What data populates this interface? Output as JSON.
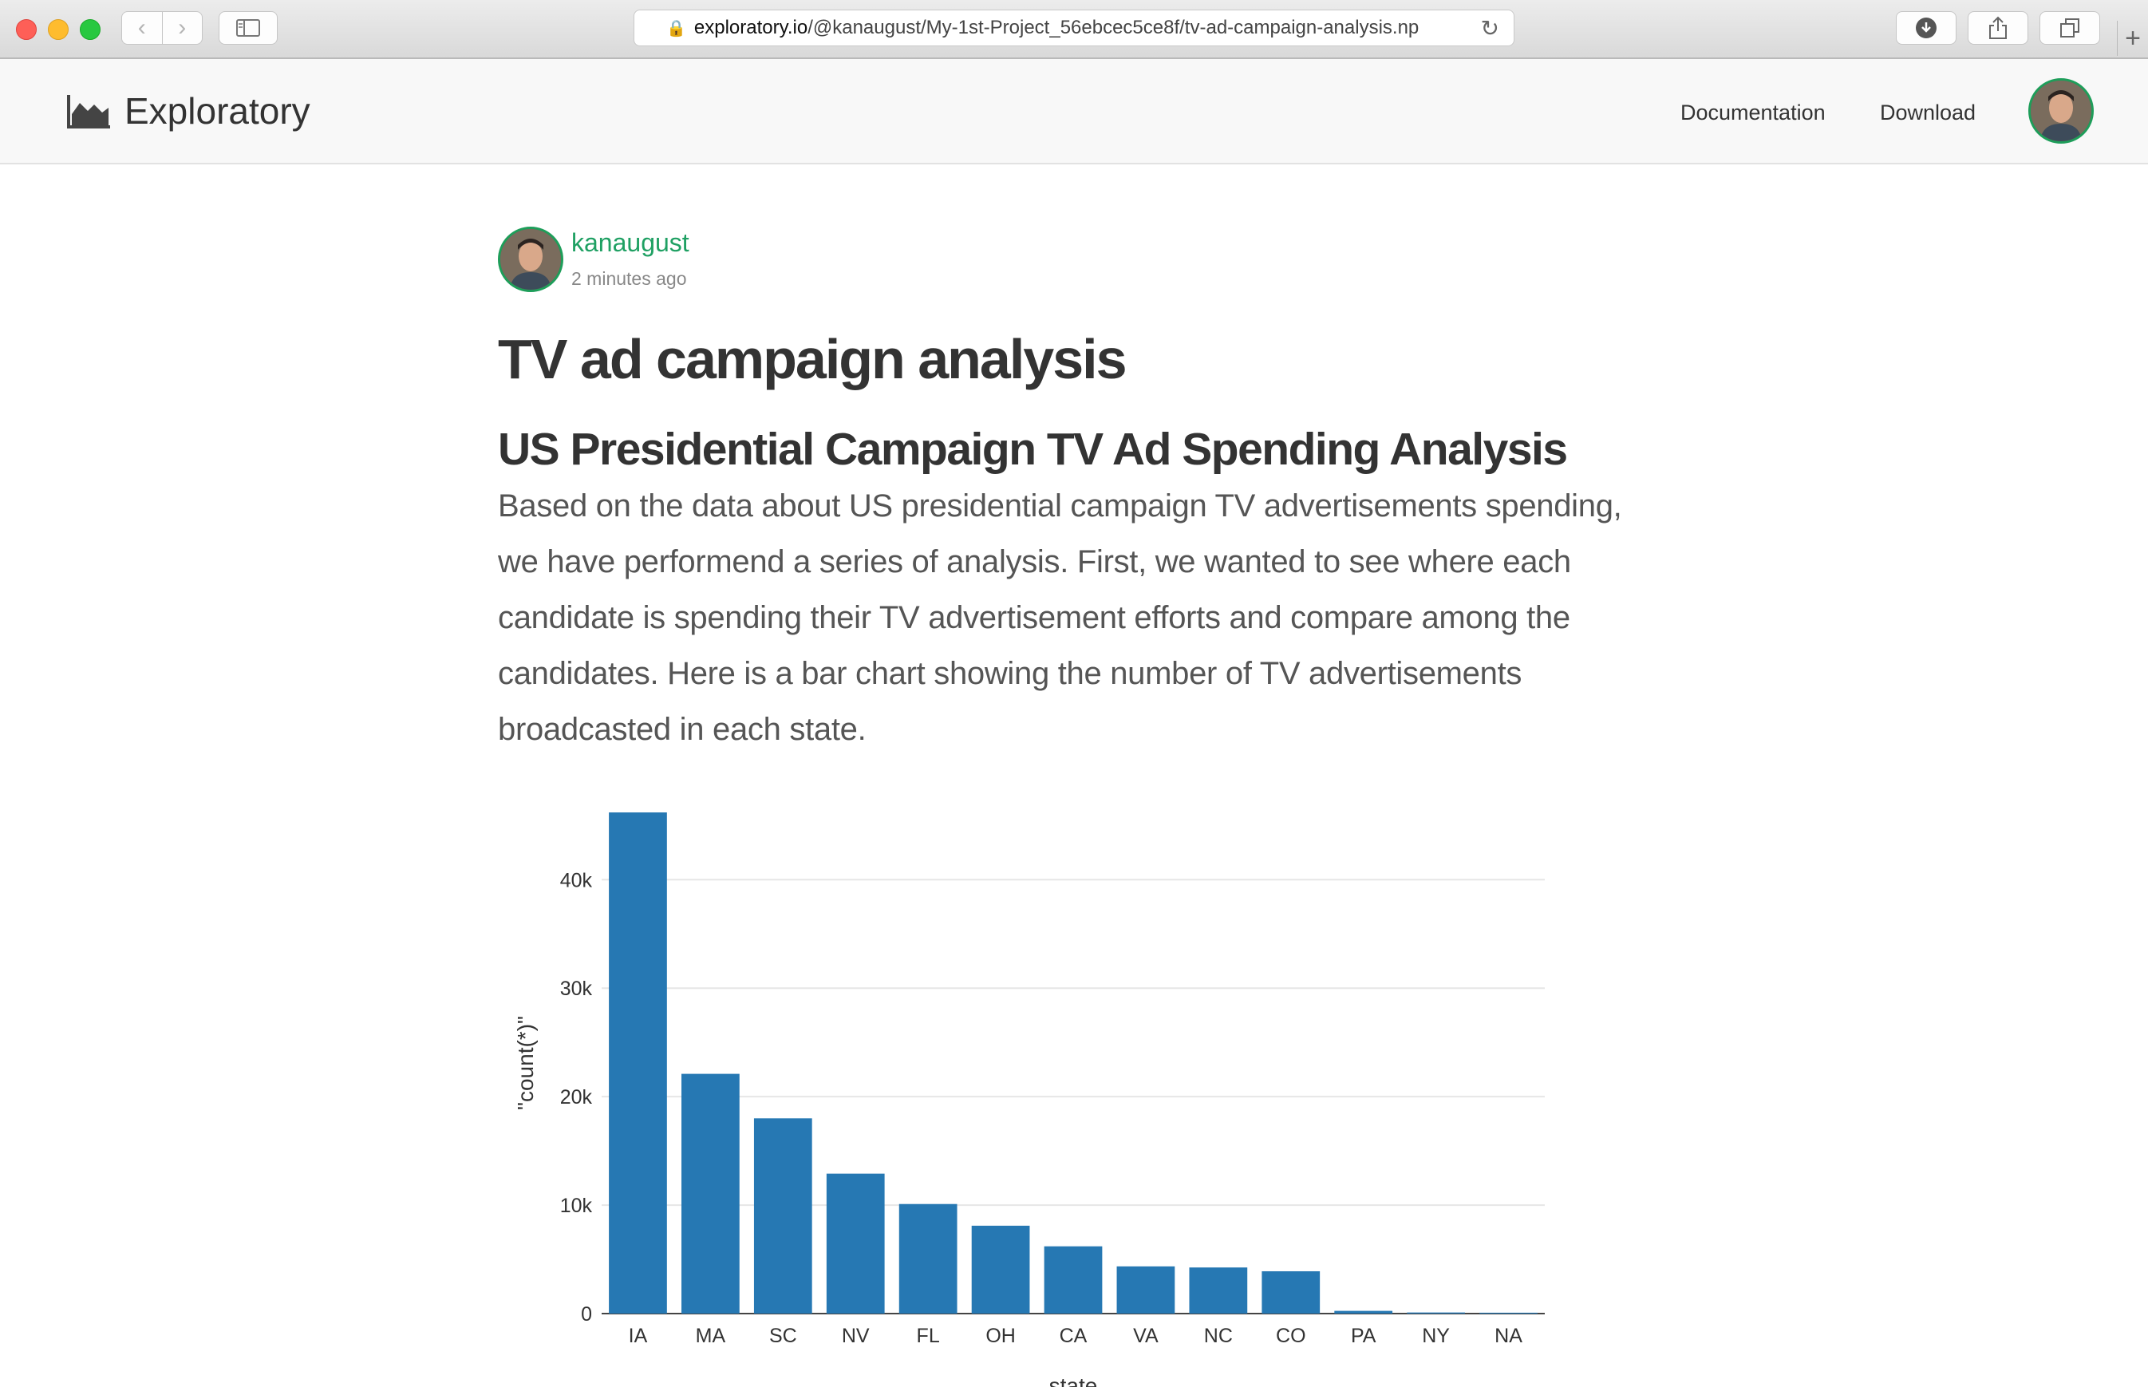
{
  "browser": {
    "url_host": "exploratory.io",
    "url_rest": "/@kanaugust/My-1st-Project_56ebcec5ce8f/tv-ad-campaign-analysis.np"
  },
  "site": {
    "name": "Exploratory",
    "nav": [
      "Documentation",
      "Download"
    ]
  },
  "post": {
    "author": "kanaugust",
    "time": "2 minutes ago",
    "title": "TV ad campaign analysis",
    "subtitle": "US Presidential Campaign TV Ad Spending Analysis",
    "paragraph": "Based on the data about US presidential campaign TV advertisements spending, we have performend a series of analysis. First, we wanted to see where each candidate is spending their TV advertisement efforts and compare among the candidates. Here is a bar chart showing the number of TV advertisements broadcasted in each state."
  },
  "colors": {
    "bar": "#2678b3",
    "accent_green": "#1fa063"
  },
  "chart_data": {
    "type": "bar",
    "categories": [
      "IA",
      "MA",
      "SC",
      "NV",
      "FL",
      "OH",
      "CA",
      "VA",
      "NC",
      "CO",
      "PA",
      "NY",
      "NA"
    ],
    "values": [
      46200,
      22100,
      18000,
      12900,
      10100,
      8100,
      6200,
      4350,
      4250,
      3900,
      250,
      100,
      80
    ],
    "ylabel": "\"count(*)\"",
    "xlabel": "state",
    "yticks": [
      0,
      10000,
      20000,
      30000,
      40000
    ],
    "ytick_labels": [
      "0",
      "10k",
      "20k",
      "30k",
      "40k"
    ],
    "ylim": [
      0,
      46200
    ],
    "grid": true
  }
}
